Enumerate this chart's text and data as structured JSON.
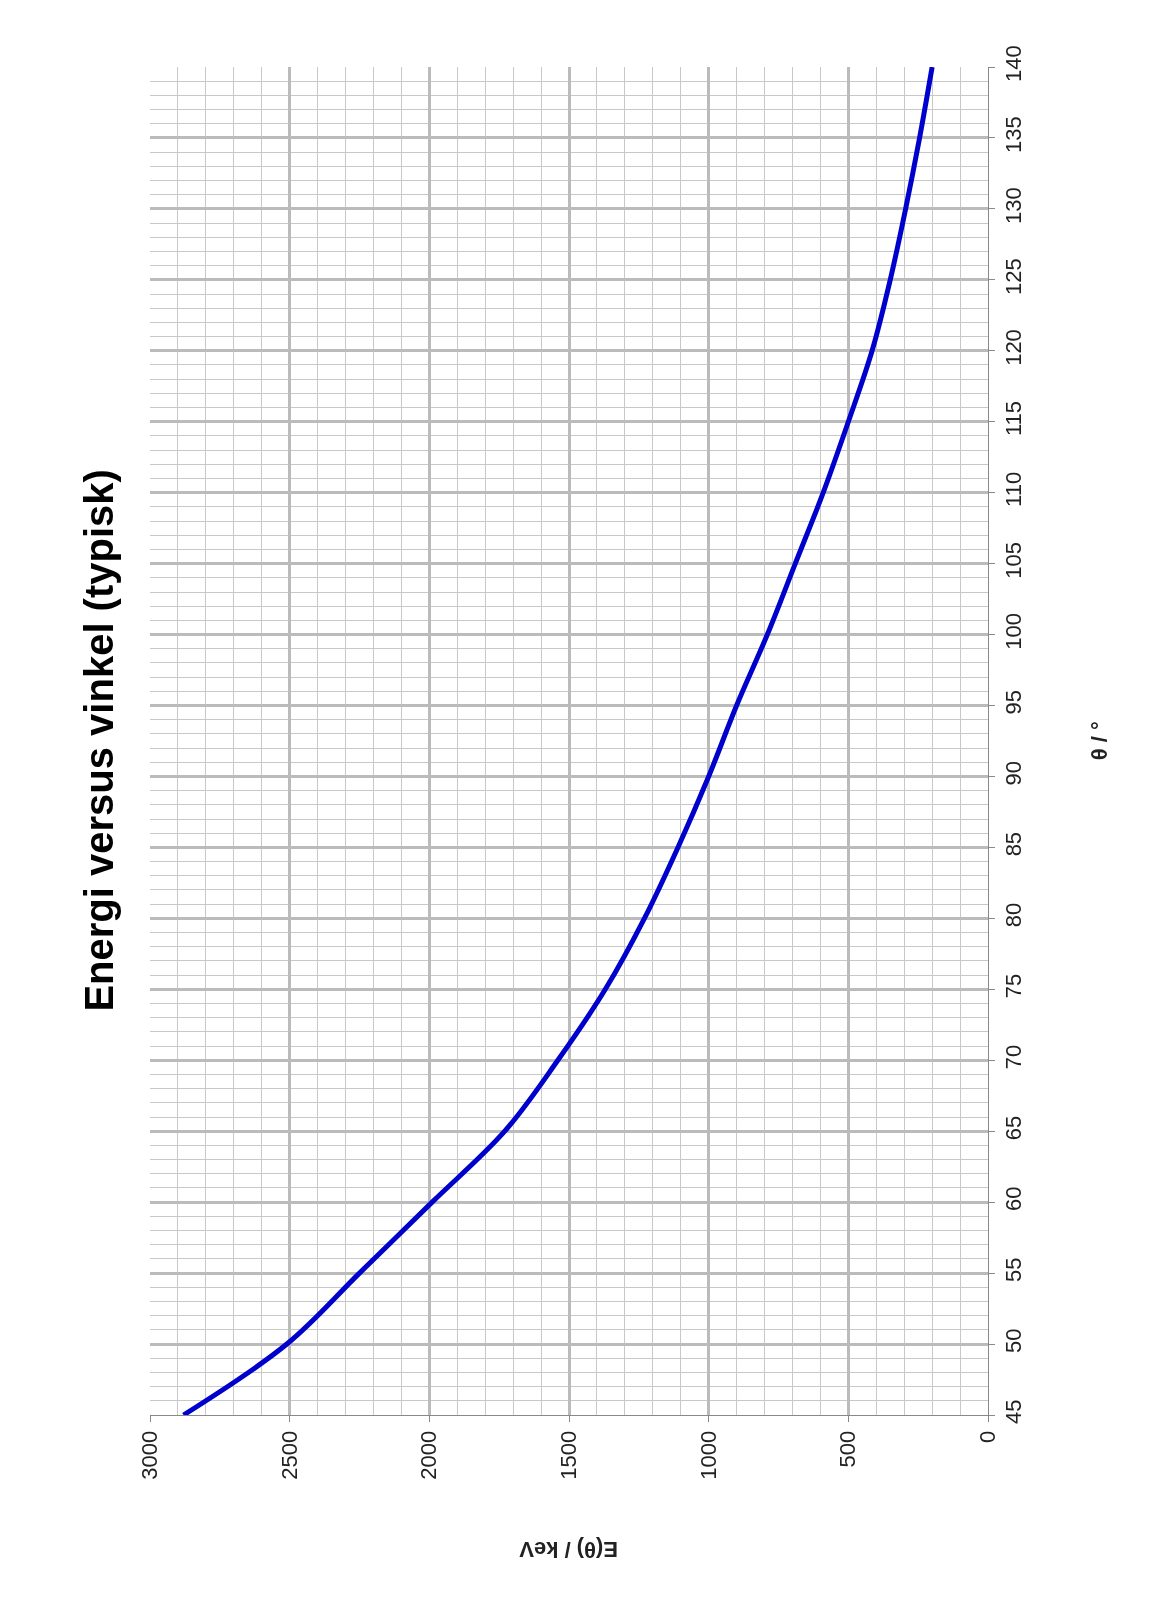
{
  "chart_data": {
    "type": "line",
    "title": "Energi versus vinkel (typisk)",
    "xlabel": "E(θ) / keV",
    "ylabel": "θ / °",
    "series": [
      {
        "color": "#0000cc",
        "x": [
          2880,
          2510,
          2250,
          1990,
          1730,
          1540,
          1370,
          1230,
          1110,
          1000,
          900,
          790,
          690,
          590,
          500,
          415,
          350,
          295,
          245,
          200
        ],
        "values": [
          45,
          50,
          55,
          60,
          65,
          70,
          75,
          80,
          85,
          90,
          95,
          100,
          105,
          110,
          115,
          120,
          125,
          130,
          135,
          140
        ]
      }
    ],
    "xlim": [
      3000,
      0
    ],
    "xticks": [
      3000,
      2500,
      2000,
      1500,
      1000,
      500,
      0
    ],
    "ylim": [
      45,
      140
    ],
    "yticks": [
      45,
      50,
      55,
      60,
      65,
      70,
      75,
      80,
      85,
      90,
      95,
      100,
      105,
      110,
      115,
      120,
      125,
      130,
      135,
      140
    ],
    "grid": true,
    "marker": "none",
    "line_style": "solid"
  }
}
